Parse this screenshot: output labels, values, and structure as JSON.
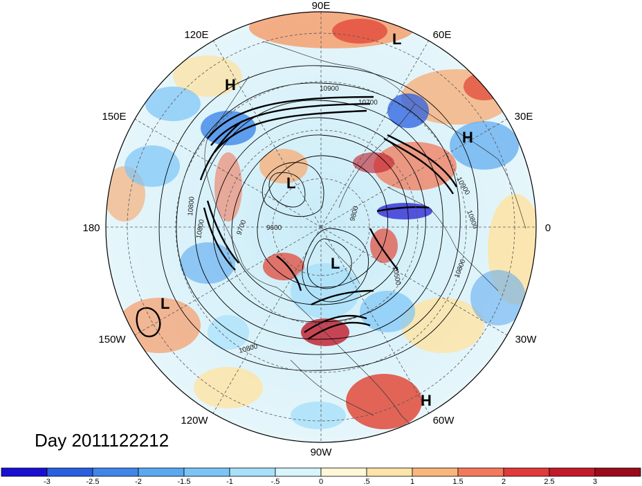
{
  "title": "Day 2011122212",
  "longitude_labels": [
    "90E",
    "60E",
    "30E",
    "0",
    "30W",
    "60W",
    "90W",
    "120W",
    "150W",
    "180",
    "150E",
    "120E"
  ],
  "pressure_centers": [
    {
      "label": "L",
      "lon": "near 70E",
      "kind": "low"
    },
    {
      "label": "H",
      "lon": "near 120E",
      "kind": "high"
    },
    {
      "label": "H",
      "lon": "near 30E",
      "kind": "high"
    },
    {
      "label": "L",
      "lon": "near 150E",
      "kind": "low"
    },
    {
      "label": "L",
      "lon": "near 90W",
      "kind": "low"
    },
    {
      "label": "L",
      "lon": "near 160W",
      "kind": "low"
    },
    {
      "label": "H",
      "lon": "near 55W",
      "kind": "high"
    }
  ],
  "contour_labels": [
    "10900",
    "10700",
    "10900",
    "10800",
    "10800",
    "9700",
    "9600",
    "9800",
    "10500",
    "10800",
    "10800",
    "10800"
  ],
  "colorbar": {
    "ticks": [
      "-3",
      "-2.5",
      "-2",
      "-1.5",
      "-1",
      "-.5",
      "0",
      ".5",
      "1",
      "1.5",
      "2",
      "2.5",
      "3"
    ],
    "colors": [
      "#1a0fd1",
      "#2a5fe0",
      "#3f86e8",
      "#5aa8f0",
      "#7cc4f6",
      "#a8e0fa",
      "#d8f4fc",
      "#fff8d8",
      "#fde4a8",
      "#f9b67c",
      "#f27a5a",
      "#e03a3a",
      "#c21a2a",
      "#9b0a1a"
    ]
  }
}
